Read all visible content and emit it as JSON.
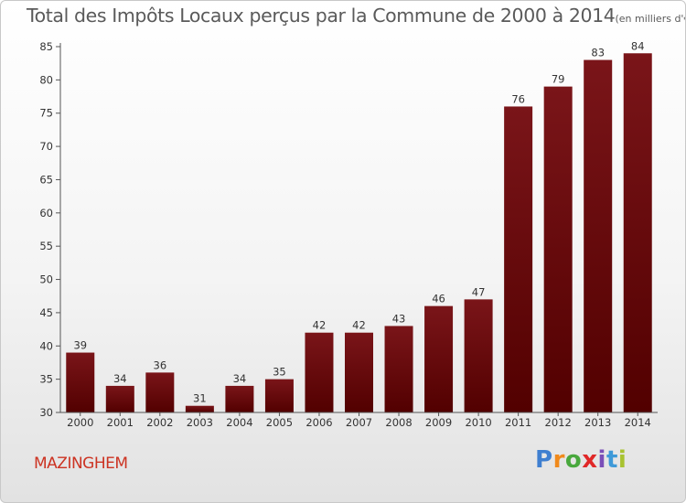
{
  "chart_data": {
    "type": "bar",
    "title": "Total des Impôts Locaux perçus par la Commune de 2000 à 2014",
    "title_unit": "(en milliers d'€)",
    "categories": [
      "2000",
      "2001",
      "2002",
      "2003",
      "2004",
      "2005",
      "2006",
      "2007",
      "2008",
      "2009",
      "2010",
      "2011",
      "2012",
      "2013",
      "2014"
    ],
    "values": [
      39,
      34,
      36,
      31,
      34,
      35,
      42,
      42,
      43,
      46,
      47,
      76,
      79,
      83,
      84
    ],
    "ylim": [
      30,
      85
    ],
    "yticks": [
      30,
      35,
      40,
      45,
      50,
      55,
      60,
      65,
      70,
      75,
      80,
      85
    ],
    "grid": false,
    "bar_color": "#7a1519",
    "bar_color_dark": "#520000",
    "data_labels": true
  },
  "footer": {
    "commune": "MAZINGHEM",
    "logo_letters": [
      "P",
      "r",
      "o",
      "x",
      "i",
      "t",
      "i"
    ],
    "logo_colors": [
      "#3f7fd0",
      "#f08a1c",
      "#49a83d",
      "#e02828",
      "#7a4fb8",
      "#3f9ad8",
      "#a8c230"
    ]
  }
}
